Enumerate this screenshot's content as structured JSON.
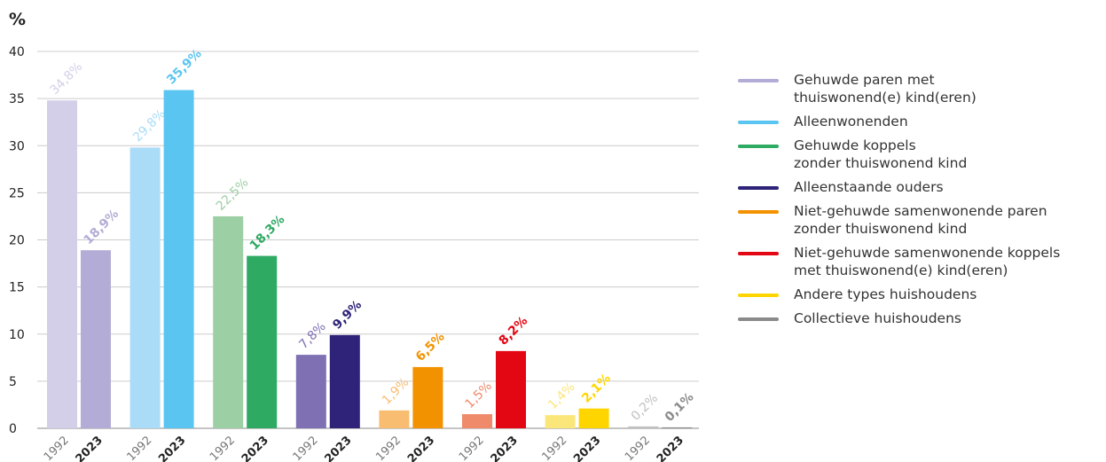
{
  "chart_data": {
    "type": "grouped-bar",
    "ylabel": "%",
    "categories": [
      "1992",
      "2023"
    ],
    "ylim": [
      0,
      40
    ],
    "yticks": [
      0,
      5,
      10,
      15,
      20,
      25,
      30,
      35,
      40
    ],
    "grid": true,
    "legend": "right",
    "series": [
      {
        "name": "Gehuwde paren met\nthuiswonend(e) kind(eren)",
        "colors": [
          "#d3cfe8",
          "#b3acd6"
        ],
        "values": [
          34.8,
          18.9
        ],
        "value_labels": [
          "34,8%",
          "18,9%"
        ]
      },
      {
        "name": "Alleenwonenden",
        "colors": [
          "#aadcf7",
          "#5bc5f2"
        ],
        "values": [
          29.8,
          35.9
        ],
        "value_labels": [
          "29,8%",
          "35,9%"
        ]
      },
      {
        "name": "Gehuwde koppels\nzonder thuiswonend kind",
        "colors": [
          "#9ccfa4",
          "#2eaa63"
        ],
        "values": [
          22.5,
          18.3
        ],
        "value_labels": [
          "22,5%",
          "18,3%"
        ]
      },
      {
        "name": "Alleenstaande ouders",
        "colors": [
          "#7f6fb3",
          "#2e2378"
        ],
        "values": [
          7.8,
          9.9
        ],
        "value_labels": [
          "7,8%",
          "9,9%"
        ]
      },
      {
        "name": "Niet-gehuwde samenwonende paren\nzonder thuiswonend kind",
        "colors": [
          "#f9bd72",
          "#f39200"
        ],
        "values": [
          1.9,
          6.5
        ],
        "value_labels": [
          "1,9%",
          "6,5%"
        ]
      },
      {
        "name": "Niet-gehuwde samenwonende koppels\nmet thuiswonend(e) kind(eren)",
        "colors": [
          "#ef8a6a",
          "#e30613"
        ],
        "values": [
          1.5,
          8.2
        ],
        "value_labels": [
          "1,5%",
          "8,2%"
        ]
      },
      {
        "name": "Andere types huishoudens",
        "colors": [
          "#fbe67a",
          "#ffd500"
        ],
        "values": [
          1.4,
          2.1
        ],
        "value_labels": [
          "1,4%",
          "2,1%"
        ]
      },
      {
        "name": "Collectieve huishoudens",
        "colors": [
          "#c0c0c0",
          "#8a8a8a"
        ],
        "values": [
          0.2,
          0.1
        ],
        "value_labels": [
          "0,2%",
          "0,1%"
        ]
      }
    ]
  }
}
